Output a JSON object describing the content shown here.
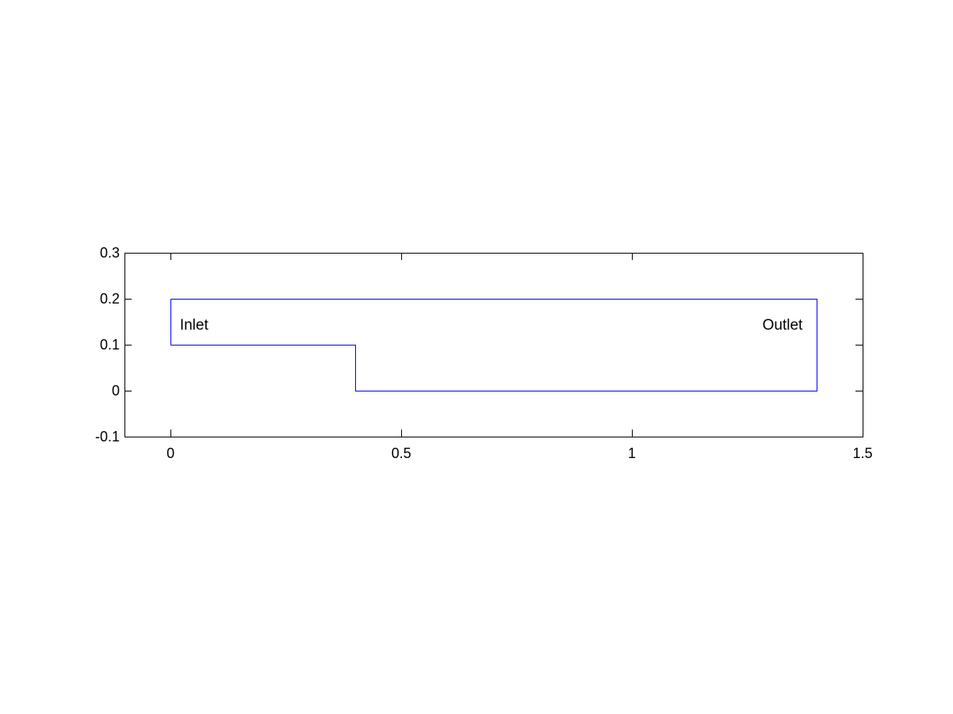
{
  "chart_data": {
    "type": "line",
    "title": "",
    "xlabel": "",
    "ylabel": "",
    "xlim": [
      -0.1,
      1.5
    ],
    "ylim": [
      -0.1,
      0.3
    ],
    "xticks": [
      0,
      0.5,
      1,
      1.5
    ],
    "xtick_labels": [
      "0",
      "0.5",
      "1",
      "1.5"
    ],
    "yticks": [
      -0.1,
      0,
      0.1,
      0.2,
      0.3
    ],
    "ytick_labels": [
      "-0.1",
      "0",
      "0.1",
      "0.2",
      "0.3"
    ],
    "grid": false,
    "series": [
      {
        "color": "#0000ff",
        "x": [
          0,
          1.4,
          1.4,
          0.4,
          0.4,
          0,
          0
        ],
        "y": [
          0.2,
          0.2,
          0,
          0,
          0.1,
          0.1,
          0.2
        ]
      }
    ],
    "annotations": [
      {
        "text": "Inlet",
        "x": 0.02,
        "y": 0.145,
        "align": "left"
      },
      {
        "text": "Outlet",
        "x": 1.37,
        "y": 0.145,
        "align": "right"
      }
    ]
  }
}
